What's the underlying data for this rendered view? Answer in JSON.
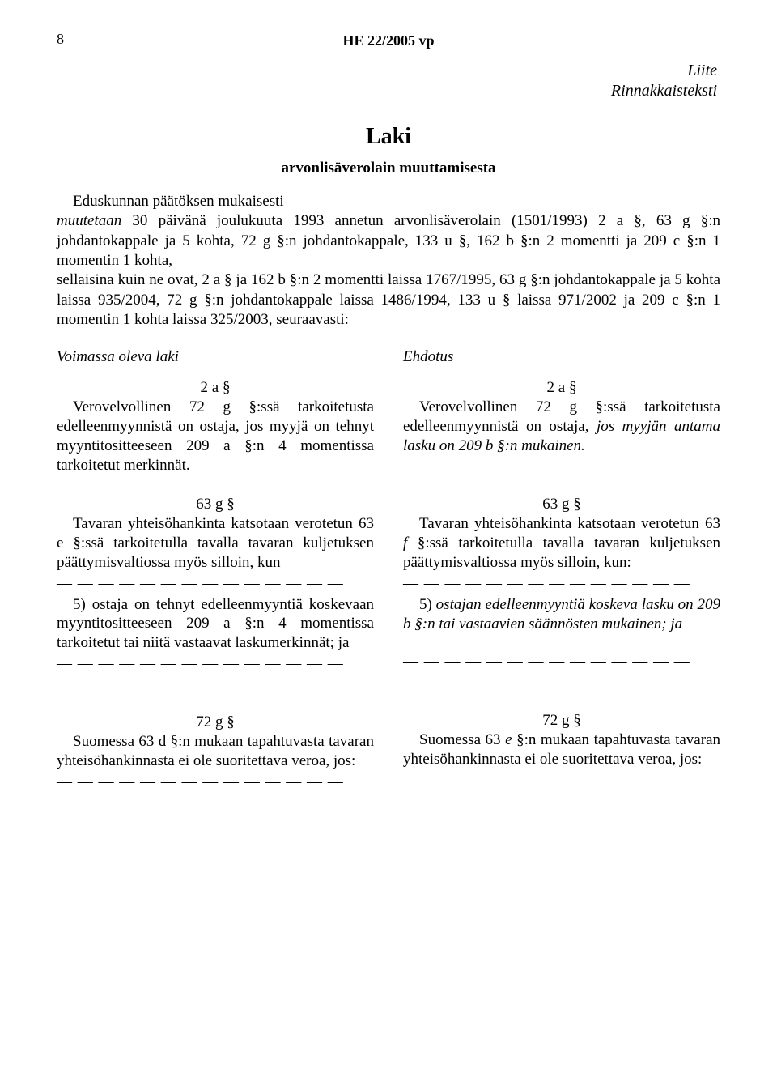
{
  "page": {
    "number": "8",
    "header": "HE 22/2005 vp",
    "annex_line1": "Liite",
    "annex_line2": "Rinnakkaisteksti",
    "law_title": "Laki",
    "subtitle": "arvonlisäverolain muuttamisesta",
    "intro_html": "Eduskunnan päätöksen mukaisesti<br><i>muutetaan</i> 30 päivänä joulukuuta 1993 annetun arvonlisäverolain (1501/1993) 2 a §, 63 g §:n johdantokappale ja 5 kohta, 72 g §:n johdantokappale, 133 u §, 162 b §:n 2 momentti ja 209 c §:n 1 momentin 1 kohta,<br>sellaisina kuin ne ovat, 2 a § ja 162 b §:n 2 momentti laissa 1767/1995, 63 g §:n johdantokappale ja 5 kohta laissa 935/2004, 72 g §:n johdantokappale laissa 1486/1994, 133 u § laissa 971/2002 ja 209 c §:n 1 momentin 1 kohta laissa 325/2003, seuraavasti:"
  },
  "left": {
    "heading": "Voimassa oleva laki",
    "s2a_num": "2 a §",
    "s2a_text": "Verovelvollinen 72 g §:ssä tarkoitetusta edelleenmyynnistä on ostaja, jos myyjä on tehnyt myyntitositteeseen 209 a §:n 4 momentissa tarkoitetut merkinnät.",
    "s63g_num": "63 g §",
    "s63g_text": "Tavaran yhteisöhankinta katsotaan verotetun 63 e §:ssä tarkoitetulla tavalla tavaran kuljetuksen päättymisvaltiossa myös silloin, kun",
    "dashes1": "— — — — — — — — — — — — — —",
    "s63g_5": "5) ostaja on tehnyt edelleenmyyntiä koskevaan myyntitositteeseen 209 a §:n 4 momentissa tarkoitetut tai niitä vastaavat laskumerkinnät; ja",
    "dashes2": "— — — — — — — — — — — — — —",
    "s72g_num": "72 g §",
    "s72g_text": "Suomessa 63 d §:n mukaan tapahtuvasta tavaran yhteisöhankinnasta ei ole suoritettava veroa, jos:",
    "dashes3": "— — — — — — — — — — — — — —"
  },
  "right": {
    "heading": "Ehdotus",
    "s2a_num": "2 a §",
    "s2a_html": "Verovelvollinen 72 g §:ssä tarkoitetusta edelleenmyynnistä on ostaja, <i>jos myyjän antama lasku on 209 b §:n mukainen.</i>",
    "s63g_num": "63 g §",
    "s63g_html": "Tavaran yhteisöhankinta katsotaan verotetun 63 <i>f</i> §:ssä tarkoitetulla tavalla tavaran kuljetuksen päättymisvaltiossa myös silloin, kun:",
    "dashes1": "— — — — — — — — — — — — — —",
    "s63g_5_html": "5) <i>ostajan edelleenmyyntiä koskeva lasku on 209 b §:n tai vastaavien säännösten mukainen; ja</i>",
    "dashes2": "— — — — — — — — — — — — — —",
    "s72g_num": "72 g §",
    "s72g_html": "Suomessa 63 <i>e</i> §:n mukaan tapahtuvasta tavaran yhteisöhankinnasta ei ole suoritettava veroa, jos:",
    "dashes3": "— — — — — — — — — — — — — —"
  }
}
